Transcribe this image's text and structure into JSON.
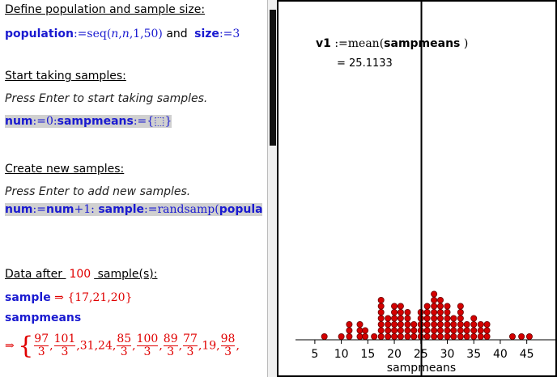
{
  "notes": {
    "define_heading": "Define population and sample size:",
    "define_line": [
      "population",
      ":=seq(",
      "n",
      ",",
      "n",
      ",1,50)",
      " and ",
      "size",
      ":=3"
    ],
    "start_heading": "Start taking samples:",
    "start_hint": "Press Enter to start taking samples.",
    "start_line": [
      "num",
      ":=0:",
      "sampmeans",
      ":={",
      "⬚",
      "}"
    ],
    "create_heading": "Create new samples:",
    "create_hint": "Press Enter to add new samples.",
    "create_line": [
      "num",
      ":=",
      "num",
      "+1: ",
      "sample",
      ":=randsamp(",
      "popula"
    ],
    "data_heading": [
      "Data after ",
      "100",
      " sample(s):"
    ],
    "sample_line": [
      "sample",
      " ⇒ ",
      "{17,21,20}"
    ],
    "sampmeans_label": "sampmeans",
    "sampmeans_result": {
      "arrow": "⇒",
      "items": [
        {
          "n": "97",
          "d": "3"
        },
        {
          "n": "101",
          "d": "3"
        },
        "31",
        "24",
        {
          "n": "85",
          "d": "3"
        },
        {
          "n": "100",
          "d": "3"
        },
        {
          "n": "89",
          "d": "3"
        },
        {
          "n": "77",
          "d": "3"
        },
        "19",
        {
          "n": "98",
          "d": "3"
        }
      ]
    }
  },
  "chart_data": {
    "type": "dot",
    "formula": [
      "v1",
      " :=mean(",
      "sampmeans",
      " )"
    ],
    "mean_line": {
      "value": 25.1133,
      "label": "= 25.1133"
    },
    "x": [
      6.8,
      10,
      11.5,
      13.5,
      14.5,
      16.2,
      17.5,
      18.8,
      20,
      21.2,
      22.5,
      23.7,
      25,
      26.2,
      27.5,
      28.7,
      30,
      31.2,
      32.5,
      33.7,
      35,
      36.3,
      37.5,
      42.3,
      44,
      45.5
    ],
    "counts": [
      1,
      1,
      3,
      3,
      2,
      1,
      7,
      4,
      6,
      6,
      5,
      3,
      5,
      6,
      8,
      7,
      6,
      4,
      6,
      3,
      4,
      3,
      3,
      1,
      1,
      1
    ],
    "color": "#d40000",
    "xlim": [
      1.35,
      50.4
    ],
    "xticks": [
      5,
      10,
      15,
      20,
      25,
      30,
      35,
      40,
      45
    ],
    "xlabel": "sampmeans"
  }
}
